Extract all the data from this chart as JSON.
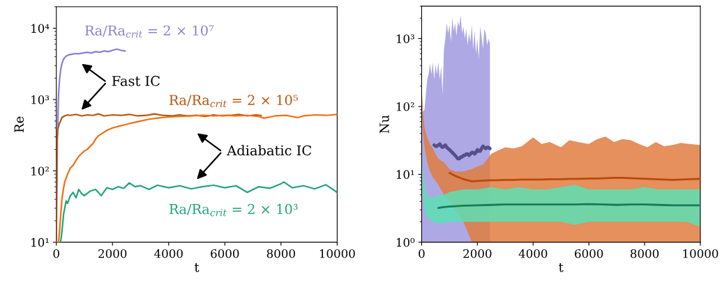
{
  "chart_data": [
    {
      "type": "line",
      "ylabel": "Re",
      "xlabel": "t",
      "log": "y",
      "xlim": [
        0,
        10000
      ],
      "ylim": [
        10,
        20000
      ],
      "xticks": [
        0,
        2000,
        4000,
        6000,
        8000,
        10000
      ],
      "yticks": [
        {
          "value": 10,
          "label": "10¹"
        },
        {
          "value": 100,
          "label": "10²"
        },
        {
          "value": 1000,
          "label": "10³"
        },
        {
          "value": 10000,
          "label": "10⁴"
        }
      ],
      "annotations": [
        "Fast IC",
        "Adiabatic IC"
      ],
      "series": [
        {
          "name": "Ra/Ra$_{crit}$ = 2 × 10⁷",
          "color": "#8b80d0",
          "x": [
            0,
            40,
            80,
            120,
            160,
            200,
            260,
            330,
            420,
            520,
            650,
            800,
            950,
            1100,
            1250,
            1400,
            1550,
            1700,
            1850,
            2000,
            2150,
            2300,
            2450
          ],
          "values": [
            10,
            300,
            1200,
            2000,
            2700,
            3200,
            3700,
            4000,
            4200,
            4300,
            4400,
            4400,
            4500,
            4600,
            4500,
            4700,
            4600,
            4800,
            4700,
            4900,
            5100,
            4900,
            4800
          ]
        },
        {
          "name": "Ra/Ra$_{crit}$ = 2 × 10⁵",
          "color": "#b9560c",
          "x": [
            0,
            20,
            50,
            100,
            150,
            200,
            300,
            400,
            500,
            700,
            900,
            1100,
            1300,
            1500,
            1700,
            2000,
            2300,
            2600,
            2900,
            3200,
            3500,
            3800,
            4100,
            4400,
            4700,
            5000,
            5300,
            5600,
            5900,
            6200,
            6500,
            6800,
            7100,
            7300
          ],
          "values": [
            10,
            250,
            380,
            450,
            500,
            560,
            590,
            610,
            600,
            620,
            590,
            610,
            600,
            630,
            590,
            610,
            600,
            620,
            590,
            600,
            630,
            600,
            590,
            610,
            590,
            600,
            580,
            610,
            590,
            600,
            620,
            590,
            610,
            600
          ]
        },
        {
          "color": "#f07010",
          "x": [
            0,
            80,
            120,
            160,
            200,
            250,
            300,
            400,
            500,
            600,
            700,
            800,
            900,
            1000,
            1100,
            1200,
            1300,
            1400,
            1500,
            1600,
            1800,
            2000,
            2200,
            2500,
            2800,
            3000,
            3300,
            3600,
            4000,
            4400,
            4800,
            5200,
            5600,
            6000,
            6400,
            6800,
            7200,
            7400,
            7800,
            8200,
            8600,
            8800,
            9200,
            9600,
            10000
          ],
          "values": [
            10,
            10,
            15,
            25,
            40,
            55,
            70,
            90,
            110,
            120,
            140,
            160,
            175,
            190,
            200,
            220,
            240,
            280,
            310,
            330,
            370,
            400,
            420,
            450,
            480,
            500,
            530,
            550,
            570,
            580,
            590,
            600,
            590,
            600,
            590,
            600,
            580,
            550,
            590,
            600,
            560,
            590,
            610,
            600,
            620
          ]
        },
        {
          "name": "Ra/Ra$_{crit}$ = 2 × 10³",
          "color": "#22a47c",
          "x": [
            150,
            180,
            220,
            260,
            300,
            350,
            400,
            500,
            600,
            700,
            800,
            900,
            1000,
            1200,
            1400,
            1600,
            1800,
            2000,
            2200,
            2400,
            2600,
            2800,
            3000,
            3300,
            3600,
            4000,
            4400,
            4800,
            5200,
            5600,
            6000,
            6400,
            6800,
            7200,
            7600,
            8000,
            8100,
            8400,
            8800,
            9200,
            9600,
            10000
          ],
          "values": [
            10,
            12,
            17,
            25,
            30,
            38,
            35,
            45,
            50,
            42,
            55,
            48,
            45,
            52,
            55,
            45,
            58,
            55,
            60,
            57,
            68,
            60,
            62,
            55,
            63,
            58,
            62,
            56,
            60,
            63,
            58,
            62,
            50,
            60,
            57,
            66,
            70,
            58,
            62,
            56,
            64,
            50
          ]
        }
      ]
    },
    {
      "type": "line",
      "ylabel": "Nu",
      "xlabel": "t",
      "log": "y",
      "xlim": [
        0,
        10000
      ],
      "ylim": [
        1,
        3000
      ],
      "xticks": [
        0,
        2000,
        4000,
        6000,
        8000,
        10000
      ],
      "yticks": [
        {
          "value": 1,
          "label": "10⁰"
        },
        {
          "value": 10,
          "label": "10¹"
        },
        {
          "value": 100,
          "label": "10²"
        },
        {
          "value": 1000,
          "label": "10³"
        }
      ],
      "series": [
        {
          "color": "#55508a",
          "x": [
            0,
            100,
            200,
            250,
            300,
            350,
            400,
            450,
            500,
            550,
            600,
            650,
            700,
            750,
            800,
            850,
            900,
            950,
            1000,
            1050,
            1100,
            1150,
            1200,
            1250,
            1300,
            1350,
            1400,
            1450,
            1500,
            1550,
            1600,
            1650,
            1700,
            1750,
            1800,
            1850,
            1900,
            1950,
            2000,
            2050,
            2100,
            2150,
            2200,
            2250,
            2300,
            2350,
            2400,
            2450
          ],
          "upper": [
            80,
            90,
            250,
            300,
            430,
            300,
            450,
            250,
            420,
            300,
            450,
            250,
            400,
            150,
            700,
            1000,
            1700,
            1200,
            1600,
            900,
            2000,
            1300,
            1700,
            1100,
            1800,
            1500,
            2200,
            1200,
            1500,
            1000,
            1400,
            800,
            1200,
            900,
            1600,
            700,
            1300,
            600,
            1000,
            500,
            1500,
            1100,
            700,
            1400,
            1200,
            800,
            1000,
            850
          ],
          "lower": [
            1,
            1,
            1,
            1,
            1,
            1,
            1,
            1,
            1,
            1,
            1,
            1,
            1,
            1,
            1,
            1,
            1,
            1,
            1,
            1,
            1,
            1,
            1,
            1,
            1,
            1,
            1,
            1,
            1,
            1,
            1,
            1,
            1,
            1,
            1,
            1,
            1,
            1,
            1,
            1,
            1,
            1,
            1,
            1,
            1,
            1,
            1,
            1
          ],
          "values": [
            null,
            null,
            null,
            null,
            null,
            null,
            null,
            27,
            26,
            26,
            27,
            28,
            26,
            25,
            26,
            27,
            25,
            24,
            23,
            22,
            21,
            20,
            19,
            18,
            17,
            17,
            18,
            18,
            19,
            19,
            20,
            20,
            19,
            20,
            21,
            21,
            20,
            21,
            23,
            22,
            22,
            24,
            26,
            25,
            24,
            25,
            25,
            24
          ]
        },
        {
          "color": "#b84a0a",
          "x": [
            0,
            50,
            100,
            200,
            300,
            400,
            500,
            600,
            800,
            1000,
            1200,
            1500,
            1800,
            2000,
            2200,
            2500,
            2700,
            3000,
            3300,
            3600,
            4000,
            4300,
            4600,
            5000,
            5300,
            5600,
            6000,
            6300,
            6600,
            6900,
            7200,
            7500,
            7800,
            8100,
            8400,
            8700,
            9000,
            9300,
            9600,
            10000
          ],
          "upper": [
            200,
            80,
            50,
            35,
            28,
            24,
            20,
            17,
            15,
            12,
            11,
            11,
            12,
            13,
            14,
            20,
            22,
            25,
            24,
            26,
            35,
            28,
            30,
            25,
            32,
            30,
            28,
            33,
            36,
            30,
            33,
            32,
            28,
            25,
            30,
            26,
            27,
            29,
            28,
            27
          ],
          "lower": [
            100,
            40,
            25,
            15,
            11,
            9,
            8,
            7,
            5,
            4,
            3,
            2,
            1,
            1,
            1,
            1,
            1,
            1,
            1,
            1,
            1,
            1,
            1,
            1,
            1,
            1,
            1,
            1,
            1,
            1,
            1,
            1,
            1,
            1,
            1,
            1,
            1,
            1,
            1,
            1
          ],
          "values": [
            null,
            null,
            null,
            null,
            null,
            null,
            null,
            null,
            null,
            10.5,
            9.5,
            8.5,
            7.9,
            8,
            8.1,
            8.2,
            8.2,
            8.3,
            8.3,
            8.4,
            8.4,
            8.4,
            8.5,
            8.5,
            8.6,
            8.6,
            8.7,
            8.7,
            8.8,
            8.9,
            8.9,
            8.8,
            8.7,
            8.6,
            8.5,
            8.4,
            8.3,
            8.4,
            8.5,
            8.6
          ]
        },
        {
          "color": "#1a7a5a",
          "x": [
            0,
            50,
            100,
            200,
            300,
            400,
            600,
            800,
            1000,
            1500,
            2000,
            2500,
            3000,
            3500,
            4000,
            4500,
            5000,
            5500,
            6000,
            6500,
            7000,
            7500,
            8000,
            8500,
            9000,
            9500,
            10000
          ],
          "upper": [
            20,
            10,
            7,
            5,
            4.5,
            4.5,
            5,
            5,
            5.5,
            6,
            6,
            6.5,
            6,
            6.5,
            6,
            6,
            6.5,
            7,
            6,
            6,
            6,
            6,
            6.5,
            6,
            6,
            6,
            6
          ],
          "lower": [
            10,
            5,
            3,
            2.3,
            2.2,
            2,
            1.9,
            1.9,
            2,
            2,
            2,
            2,
            2,
            2,
            2,
            2,
            2,
            1.8,
            2,
            2,
            2,
            2,
            2,
            2,
            2,
            2,
            1.7
          ],
          "values": [
            null,
            null,
            null,
            null,
            null,
            null,
            3.2,
            3.3,
            3.35,
            3.45,
            3.5,
            3.55,
            3.6,
            3.6,
            3.6,
            3.6,
            3.6,
            3.6,
            3.65,
            3.6,
            3.55,
            3.6,
            3.6,
            3.55,
            3.5,
            3.5,
            3.5
          ]
        }
      ]
    }
  ]
}
